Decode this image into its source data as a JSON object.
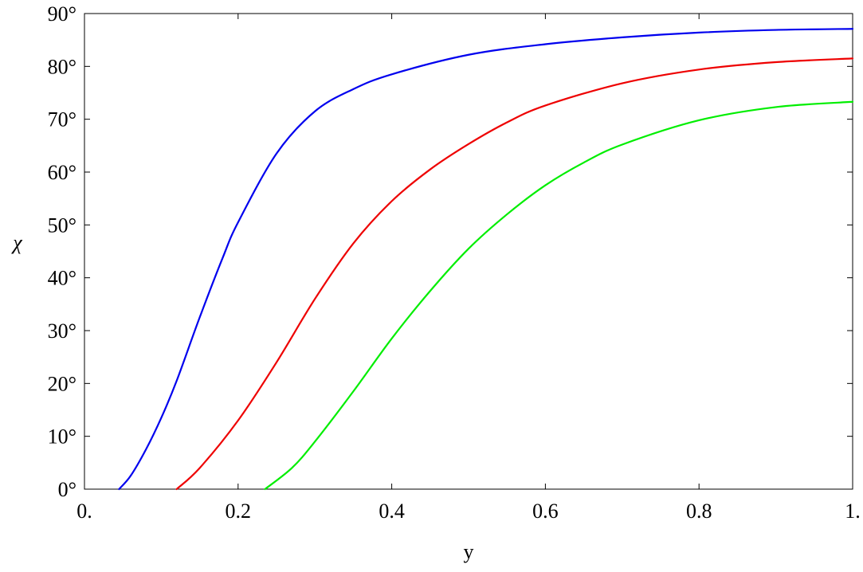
{
  "chart_data": {
    "type": "line",
    "title": "",
    "xlabel": "y",
    "ylabel": "χ",
    "xlim": [
      0,
      1
    ],
    "ylim": [
      0,
      90
    ],
    "grid": false,
    "legend": "none",
    "x_ticks": [
      0,
      0.2,
      0.4,
      0.6,
      0.8,
      1
    ],
    "x_tick_labels": [
      "0.",
      "0.2",
      "0.4",
      "0.6",
      "0.8",
      "1."
    ],
    "y_ticks": [
      0,
      10,
      20,
      30,
      40,
      50,
      60,
      70,
      80,
      90
    ],
    "y_tick_labels": [
      "0°",
      "10°",
      "20°",
      "30°",
      "40°",
      "50°",
      "60°",
      "70°",
      "80°",
      "90°"
    ],
    "series": [
      {
        "color": "#0000ee",
        "x": [
          0.045,
          0.06,
          0.08,
          0.1,
          0.12,
          0.15,
          0.18,
          0.2,
          0.25,
          0.3,
          0.35,
          0.4,
          0.5,
          0.6,
          0.7,
          0.8,
          0.9,
          1.0
        ],
        "y": [
          0,
          2.5,
          7.5,
          13.5,
          20.5,
          32.5,
          43.8,
          50.5,
          63.5,
          71.5,
          75.7,
          78.5,
          82.2,
          84.2,
          85.5,
          86.4,
          86.9,
          87.1
        ]
      },
      {
        "color": "#ee0000",
        "x": [
          0.12,
          0.15,
          0.2,
          0.25,
          0.3,
          0.35,
          0.4,
          0.45,
          0.5,
          0.55,
          0.6,
          0.7,
          0.8,
          0.9,
          1.0
        ],
        "y": [
          0,
          4,
          13,
          24,
          36,
          46.5,
          54.5,
          60.5,
          65.3,
          69.4,
          72.6,
          76.8,
          79.4,
          80.8,
          81.5
        ]
      },
      {
        "color": "#00ee00",
        "x": [
          0.235,
          0.27,
          0.3,
          0.35,
          0.4,
          0.45,
          0.5,
          0.55,
          0.6,
          0.65,
          0.7,
          0.8,
          0.9,
          1.0
        ],
        "y": [
          0,
          4,
          9,
          18.5,
          28.5,
          37.5,
          45.5,
          52,
          57.5,
          61.8,
          65.2,
          69.8,
          72.3,
          73.3
        ]
      }
    ]
  }
}
